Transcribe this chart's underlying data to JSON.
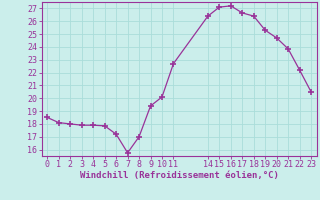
{
  "x_values": [
    0,
    1,
    2,
    3,
    4,
    5,
    6,
    7,
    8,
    9,
    10,
    11,
    14,
    15,
    16,
    17,
    18,
    19,
    20,
    21,
    22,
    23
  ],
  "y_values": [
    18.5,
    18.1,
    18.0,
    17.9,
    17.9,
    17.85,
    17.2,
    15.75,
    17.0,
    19.4,
    20.1,
    22.7,
    26.4,
    27.1,
    27.2,
    26.65,
    26.4,
    25.3,
    24.7,
    23.85,
    22.2,
    20.5
  ],
  "line_color": "#993399",
  "marker": "+",
  "marker_size": 4,
  "bg_color": "#cbeeeb",
  "grid_color": "#aaddda",
  "xlabel": "Windchill (Refroidissement éolien,°C)",
  "xlabel_color": "#993399",
  "xlabel_fontsize": 6.5,
  "tick_color": "#993399",
  "tick_fontsize": 6,
  "xlim": [
    -0.5,
    23.5
  ],
  "ylim": [
    15.5,
    27.5
  ],
  "yticks": [
    16,
    17,
    18,
    19,
    20,
    21,
    22,
    23,
    24,
    25,
    26,
    27
  ],
  "xticks": [
    0,
    1,
    2,
    3,
    4,
    5,
    6,
    7,
    8,
    9,
    10,
    11,
    14,
    15,
    16,
    17,
    18,
    19,
    20,
    21,
    22,
    23
  ]
}
